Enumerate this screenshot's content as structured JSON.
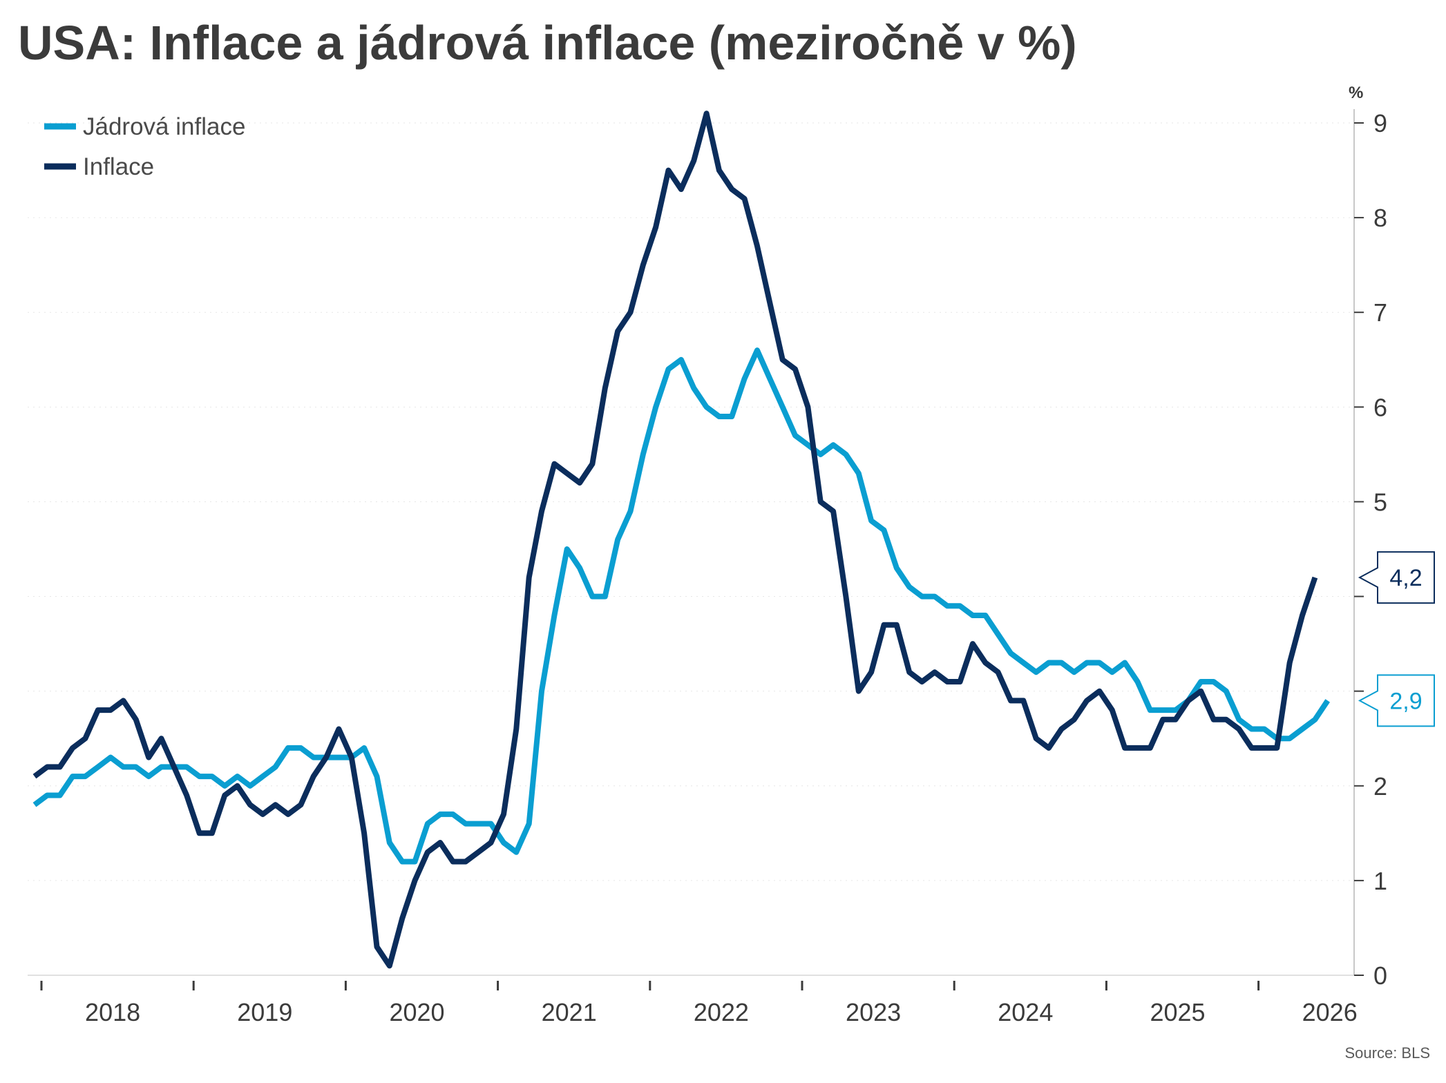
{
  "title": "USA: Inflace a jádrová inflace (meziročně v %)",
  "source": "Source: BLS",
  "colors": {
    "core": "#0a9ed1",
    "headline": "#0b2d5c",
    "axis": "#3b3b3b",
    "grid": "#e6e6e6"
  },
  "chart_data": {
    "type": "line",
    "title": "USA: Inflace a jádrová inflace (meziročně v %)",
    "ylabel": "%",
    "xlabel": "",
    "ylim": [
      0,
      9
    ],
    "yticks": [
      0,
      1,
      2,
      3,
      4,
      5,
      6,
      7,
      8,
      9
    ],
    "ytick_labels": [
      "0",
      "1",
      "2",
      "",
      "",
      "5",
      "6",
      "7",
      "8",
      "9"
    ],
    "xticks": [
      "2018",
      "2019",
      "2020",
      "2021",
      "2022",
      "2023",
      "2024",
      "2025",
      "2026"
    ],
    "x_start": "2017-12",
    "x_end": "2026-03",
    "legend_position": "top-left",
    "grid": false,
    "series": [
      {
        "name": "Jádrová inflace",
        "color": "#0a9ed1",
        "last_label": "2,9",
        "values": [
          1.8,
          1.9,
          1.9,
          2.1,
          2.1,
          2.2,
          2.3,
          2.2,
          2.2,
          2.1,
          2.2,
          2.2,
          2.2,
          2.1,
          2.1,
          2.0,
          2.1,
          2.0,
          2.1,
          2.2,
          2.4,
          2.4,
          2.3,
          2.3,
          2.3,
          2.3,
          2.4,
          2.1,
          1.4,
          1.2,
          1.2,
          1.6,
          1.7,
          1.7,
          1.6,
          1.6,
          1.6,
          1.4,
          1.3,
          1.6,
          3.0,
          3.8,
          4.5,
          4.3,
          4.0,
          4.0,
          4.6,
          4.9,
          5.5,
          6.0,
          6.4,
          6.5,
          6.2,
          6.0,
          5.9,
          5.9,
          6.3,
          6.6,
          6.3,
          6.0,
          5.7,
          5.6,
          5.5,
          5.6,
          5.5,
          5.3,
          4.8,
          4.7,
          4.3,
          4.1,
          4.0,
          4.0,
          3.9,
          3.9,
          3.8,
          3.8,
          3.6,
          3.4,
          3.3,
          3.2,
          3.3,
          3.3,
          3.2,
          3.3,
          3.3,
          3.2,
          3.3,
          3.1,
          2.8,
          2.8,
          2.8,
          2.9,
          3.1,
          3.1,
          3.0,
          2.7,
          2.6,
          2.6,
          2.5,
          2.5,
          2.6,
          2.7,
          2.9
        ]
      },
      {
        "name": "Inflace",
        "color": "#0b2d5c",
        "last_label": "4,2",
        "values": [
          2.1,
          2.2,
          2.2,
          2.4,
          2.5,
          2.8,
          2.8,
          2.9,
          2.7,
          2.3,
          2.5,
          2.2,
          1.9,
          1.5,
          1.5,
          1.9,
          2.0,
          1.8,
          1.7,
          1.8,
          1.7,
          1.8,
          2.1,
          2.3,
          2.6,
          2.3,
          1.5,
          0.3,
          0.1,
          0.6,
          1.0,
          1.3,
          1.4,
          1.2,
          1.2,
          1.3,
          1.4,
          1.7,
          2.6,
          4.2,
          4.9,
          5.4,
          5.3,
          5.2,
          5.4,
          6.2,
          6.8,
          7.0,
          7.5,
          7.9,
          8.5,
          8.3,
          8.6,
          9.1,
          8.5,
          8.3,
          8.2,
          7.7,
          7.1,
          6.5,
          6.4,
          6.0,
          5.0,
          4.9,
          4.0,
          3.0,
          3.2,
          3.7,
          3.7,
          3.2,
          3.1,
          3.2,
          3.1,
          3.1,
          3.5,
          3.3,
          3.2,
          2.9,
          2.9,
          2.5,
          2.4,
          2.6,
          2.7,
          2.9,
          3.0,
          2.8,
          2.4,
          2.4,
          2.4,
          2.7,
          2.7,
          2.9,
          3.0,
          2.7,
          2.7,
          2.6,
          2.4,
          2.4,
          2.4,
          3.3,
          3.8,
          4.2
        ]
      }
    ]
  }
}
